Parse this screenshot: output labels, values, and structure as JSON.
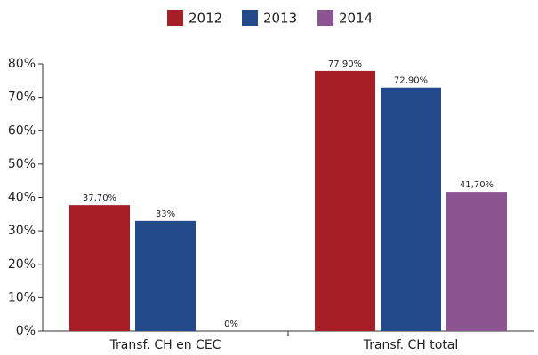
{
  "chart_data": {
    "type": "bar",
    "categories": [
      "Transf. CH en CEC",
      "Transf. CH total"
    ],
    "series": [
      {
        "name": "2012",
        "color": "#a51f24",
        "values": [
          37.7,
          77.9
        ],
        "value_labels": [
          "37,70%",
          "77,90%"
        ]
      },
      {
        "name": "2013",
        "color": "#234b8c",
        "values": [
          33,
          72.9
        ],
        "value_labels": [
          "33%",
          "72,90%"
        ]
      },
      {
        "name": "2014",
        "color": "#8c5592",
        "values": [
          0,
          41.7
        ],
        "value_labels": [
          "0%",
          "41,70%"
        ]
      }
    ],
    "ylim": [
      0,
      80
    ],
    "yticks": [
      {
        "value": 0,
        "label": "0%"
      },
      {
        "value": 10,
        "label": "10%"
      },
      {
        "value": 20,
        "label": "20%"
      },
      {
        "value": 30,
        "label": "30%"
      },
      {
        "value": 40,
        "label": "40%"
      },
      {
        "value": 50,
        "label": "50%"
      },
      {
        "value": 60,
        "label": "60%"
      },
      {
        "value": 70,
        "label": "70%"
      },
      {
        "value": 80,
        "label": "80%"
      }
    ],
    "legend": "top"
  }
}
